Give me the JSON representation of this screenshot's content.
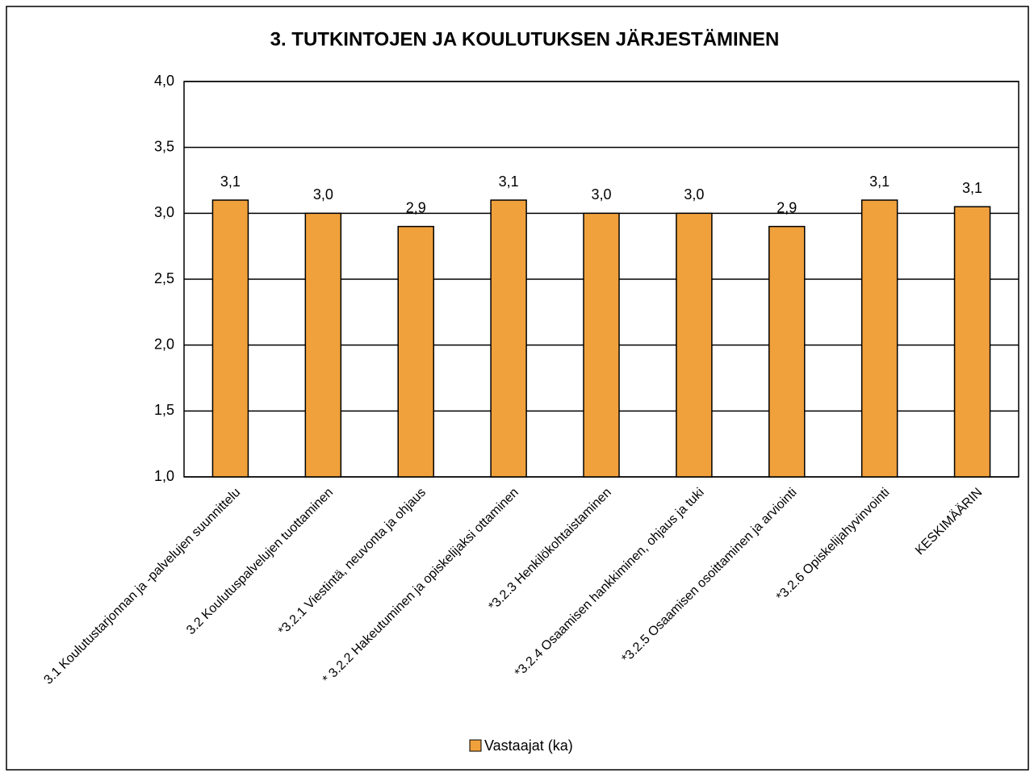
{
  "chart_data": {
    "type": "bar",
    "title": "3. TUTKINTOJEN JA KOULUTUKSEN JÄRJESTÄMINEN",
    "categories": [
      "3.1 Koulutustarjonnan ja -palvelujen suunnittelu",
      "3.2 Koulutuspalvelujen tuottaminen",
      "*3.2.1 Viestintä, neuvonta ja ohjaus",
      "* 3.2.2 Hakeutuminen ja opiskelijaksi ottaminen",
      "*3.2.3 Henkilökohtaistaminen",
      "*3.2.4 Osaamisen hankkiminen, ohjaus ja tuki",
      "*3.2.5 Osaamisen osoittaminen ja arviointi",
      "*3.2.6 Opiskelijahyvinvointi",
      "KESKIMÄÄRIN"
    ],
    "series": [
      {
        "name": "Vastaajat (ka)",
        "color": "#f0a13c",
        "values": [
          3.1,
          3.0,
          2.9,
          3.1,
          3.0,
          3.0,
          2.9,
          3.1,
          3.05
        ],
        "value_labels": [
          "3,1",
          "3,0",
          "2,9",
          "3,1",
          "3,0",
          "3,0",
          "2,9",
          "3,1",
          "3,1"
        ]
      }
    ],
    "ylim": [
      1,
      4
    ],
    "yticks": [
      {
        "value": 1,
        "label": "1,0"
      },
      {
        "value": 1.5,
        "label": "1,5"
      },
      {
        "value": 2,
        "label": "2,0"
      },
      {
        "value": 2.5,
        "label": "2,5"
      },
      {
        "value": 3,
        "label": "3,0"
      },
      {
        "value": 3.5,
        "label": "3,5"
      },
      {
        "value": 4,
        "label": "4,0"
      }
    ],
    "grid": true,
    "legend": "bottom"
  }
}
